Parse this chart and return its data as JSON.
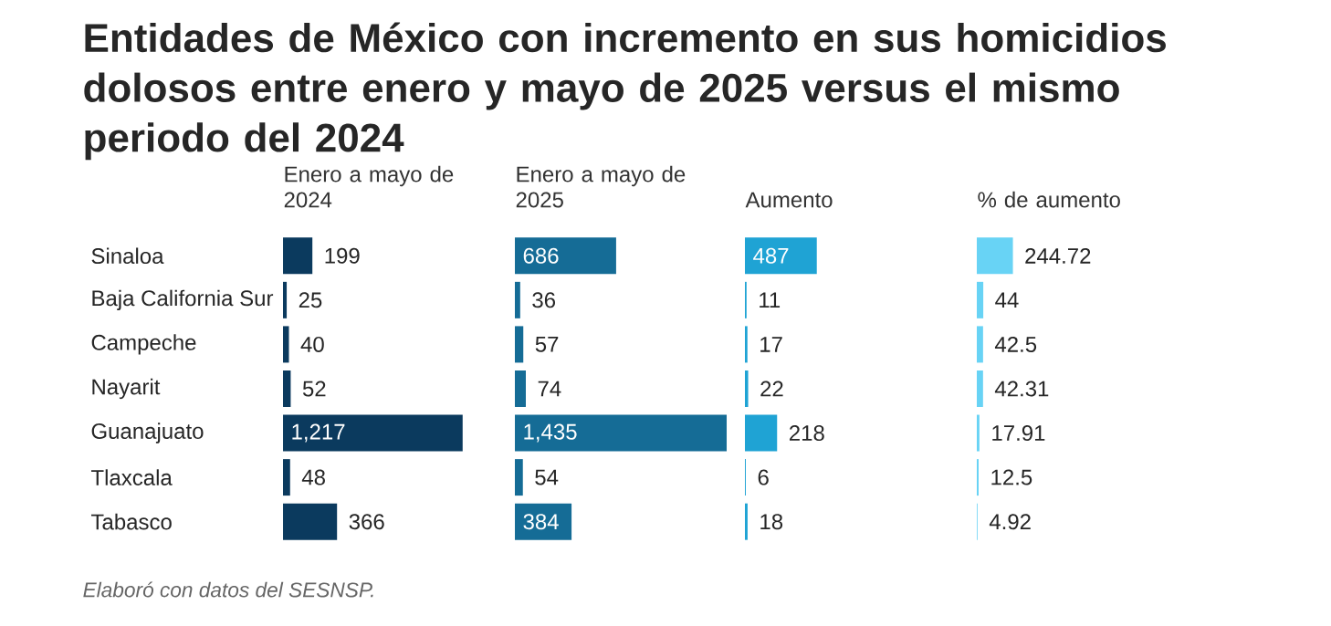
{
  "chart_data": [
    {
      "type": "bar",
      "orientation": "horizontal",
      "title": "Entidades de México con incremento en sus homicidios dolosos entre enero y mayo de 2025 versus el mismo periodo del 2024",
      "subtitle": "Enero a mayo de 2024",
      "categories": [
        "Sinaloa",
        "Baja California Sur",
        "Campeche",
        "Nayarit",
        "Guanajuato",
        "Tlaxcala",
        "Tabasco"
      ],
      "values": [
        199,
        25,
        40,
        52,
        1217,
        48,
        366
      ],
      "value_labels": [
        "199",
        "25",
        "40",
        "52",
        "1,217",
        "48",
        "366"
      ],
      "color": "#0b3a5e",
      "tick_labels": "y",
      "annotations": [
        "Elaboró con datos del SESNSP."
      ]
    },
    {
      "type": "bar",
      "orientation": "horizontal",
      "subtitle": "Enero a mayo de 2025",
      "values": [
        686,
        36,
        57,
        74,
        1435,
        54,
        384
      ],
      "value_labels": [
        "686",
        "36",
        "57",
        "74",
        "1,435",
        "54",
        "384"
      ],
      "color": "#156c96",
      "tick_labels": false
    },
    {
      "type": "bar",
      "orientation": "horizontal",
      "subtitle": "Aumento",
      "values": [
        487,
        11,
        17,
        22,
        218,
        6,
        18
      ],
      "data_labels": true,
      "color": "#1fa3d4",
      "tick_labels": false
    },
    {
      "type": "bar",
      "orientation": "horizontal",
      "subtitle": "% de aumento",
      "values": [
        244.72,
        44,
        42.5,
        42.31,
        17.91,
        12.5,
        4.92
      ],
      "data_labels": true,
      "color": "#68d3f5",
      "tick_labels": false
    }
  ]
}
